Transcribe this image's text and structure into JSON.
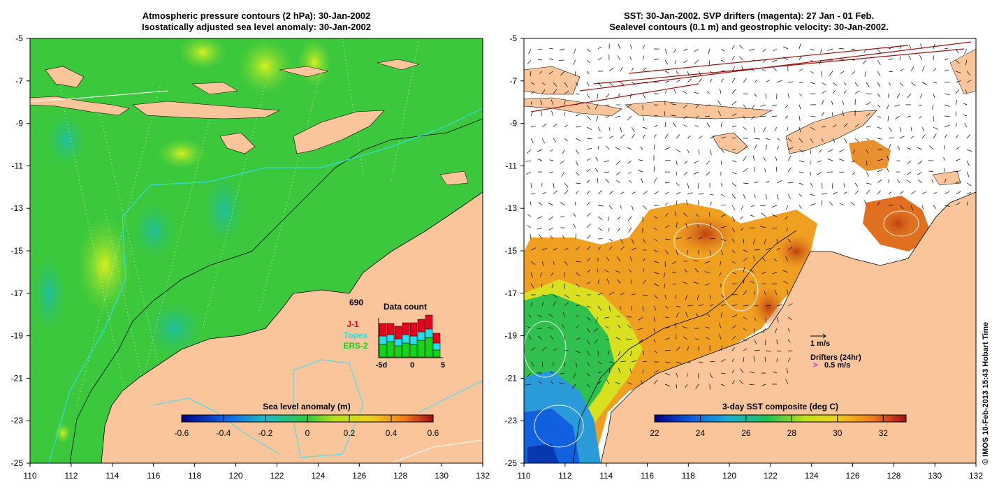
{
  "left_panel": {
    "title_line1": "Atmospheric pressure contours (2 hPa): 30-Jan-2002",
    "title_line2": "Isostatically adjusted sea level anomaly: 30-Jan-2002",
    "colorbar": {
      "label": "Sea level anomaly (m)",
      "ticks": [
        "-0.6",
        "-0.4",
        "-0.2",
        "0",
        "0.2",
        "0.4",
        "0.6"
      ],
      "range": [
        -0.6,
        0.6
      ]
    },
    "data_count": {
      "title": "Data count",
      "total": "690",
      "legend": [
        {
          "name": "J-1",
          "color": "#e8001c"
        },
        {
          "name": "Topex",
          "color": "#22e0ea"
        },
        {
          "name": "ERS-2",
          "color": "#10d818"
        }
      ],
      "xticks": [
        "-5d",
        "0",
        "5"
      ]
    }
  },
  "right_panel": {
    "title_line1": "SST: 30-Jan-2002. SVP drifters (magenta): 27 Jan - 01 Feb.",
    "title_line2": "Sealevel contours (0.1 m) and geostrophic velocity: 30-Jan-2002.",
    "colorbar": {
      "label": "3-day SST composite (deg C)",
      "ticks": [
        "22",
        "24",
        "26",
        "28",
        "30",
        "32"
      ],
      "range": [
        22,
        33
      ]
    },
    "velocity_legend": "1 m/s",
    "drifter_legend_title": "Drifters (24hr)",
    "drifter_legend_value": "0.5 m/s"
  },
  "axes": {
    "lon_ticks": [
      "110",
      "112",
      "114",
      "116",
      "118",
      "120",
      "122",
      "124",
      "126",
      "128",
      "130",
      "132"
    ],
    "lat_ticks": [
      "-5",
      "-7",
      "-9",
      "-11",
      "-13",
      "-15",
      "-17",
      "-19",
      "-21",
      "-23",
      "-25"
    ],
    "lon_range": [
      110,
      132
    ],
    "lat_range": [
      -25,
      -5
    ]
  },
  "credit": "© IMOS 10-Feb-2013 15:43 Hobart Time",
  "colors": {
    "land": "#fac59a",
    "ocean_green": "#3cc83c",
    "sst_warm": "#f0a020"
  }
}
